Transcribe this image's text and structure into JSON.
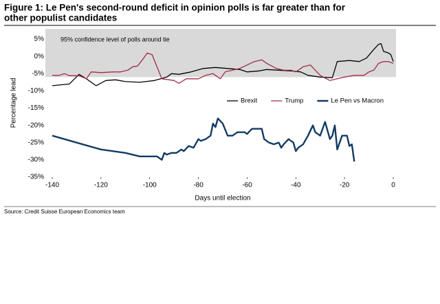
{
  "chart_data": {
    "type": "line",
    "title_lines": [
      "Figure 1: Le Pen's second-round deficit in opinion polls is far greater than for",
      "other populist candidates"
    ],
    "ylabel": "Percentage lead",
    "xlabel": "Days until election",
    "source": "Source: Credit Suisse European Economics team",
    "band": {
      "label": "95% confidence level of polls around tie",
      "range": [
        -6,
        8
      ],
      "color": "#d9d9d9"
    },
    "xlim": [
      -140,
      0
    ],
    "xticks": [
      -140,
      -120,
      -100,
      -80,
      -60,
      -40,
      -20,
      0
    ],
    "ylim": [
      -35,
      8
    ],
    "yticks": [
      {
        "value": 5,
        "label": "5%"
      },
      {
        "value": 0,
        "label": "0%"
      },
      {
        "value": -5,
        "label": "-5%"
      },
      {
        "value": -10,
        "label": "-10%"
      },
      {
        "value": -15,
        "label": "-15%"
      },
      {
        "value": -20,
        "label": "-20%"
      },
      {
        "value": -25,
        "label": "-25%"
      },
      {
        "value": -30,
        "label": "-30%"
      },
      {
        "value": -35,
        "label": "-35%"
      }
    ],
    "legend": "right",
    "series": [
      {
        "name": "Brexit",
        "color": "#000000",
        "width": 1.3,
        "x": [
          -140,
          -133,
          -129,
          -126,
          -122,
          -118,
          -114,
          -110,
          -104,
          -98,
          -93,
          -91,
          -88,
          -83,
          -78,
          -73,
          -68,
          -63,
          -60,
          -55,
          -52,
          -47,
          -42,
          -38,
          -35,
          -30,
          -25,
          -23,
          -18,
          -14,
          -11,
          -8,
          -6,
          -5,
          -4,
          -2,
          -1,
          0
        ],
        "values": [
          -8.5,
          -8,
          -5.2,
          -6.5,
          -8.5,
          -7,
          -6.8,
          -7.3,
          -7.5,
          -7,
          -6,
          -5,
          -5.2,
          -4.5,
          -3.5,
          -3.2,
          -3.5,
          -3.8,
          -4.5,
          -4.2,
          -3.8,
          -4,
          -4.2,
          -4.5,
          -5.5,
          -6,
          -6.2,
          -1.5,
          -1.2,
          -1.5,
          -0.5,
          2,
          3.5,
          3.7,
          1.5,
          1,
          0.5,
          -1.5
        ]
      },
      {
        "name": "Trump",
        "color": "#a32b45",
        "width": 1.3,
        "x": [
          -140,
          -137,
          -135,
          -133,
          -129,
          -126,
          -124,
          -120,
          -115,
          -112,
          -109,
          -107,
          -105,
          -103,
          -101,
          -99,
          -97,
          -95,
          -90,
          -88,
          -85,
          -80,
          -77,
          -74,
          -71,
          -69,
          -66,
          -63,
          -60,
          -57,
          -54,
          -52,
          -48,
          -45,
          -42,
          -40,
          -37,
          -34,
          -32,
          -30,
          -28,
          -26,
          -20,
          -16,
          -12,
          -10,
          -8,
          -6,
          -4,
          -2,
          0
        ],
        "values": [
          -5.5,
          -5.5,
          -5,
          -5.6,
          -5.6,
          -6.5,
          -4.5,
          -4.7,
          -4.5,
          -4.5,
          -4,
          -3,
          -2.8,
          -1,
          1,
          0.5,
          -3,
          -6.5,
          -7,
          -7.8,
          -6.5,
          -6.5,
          -5.5,
          -5,
          -6.5,
          -4.5,
          -4,
          -3.5,
          -2.5,
          -1.5,
          -1,
          -2,
          -3.5,
          -4,
          -4,
          -4.5,
          -3,
          -2.5,
          -4,
          -5.5,
          -6.3,
          -7,
          -6,
          -5.5,
          -5.5,
          -4.5,
          -4,
          -2,
          -1.5,
          -1.5,
          -2
        ]
      },
      {
        "name": "Le Pen vs Macron",
        "color": "#123a63",
        "width": 2.4,
        "x": [
          -140,
          -130,
          -120,
          -110,
          -104,
          -97,
          -95,
          -94,
          -93,
          -91,
          -89,
          -87,
          -86,
          -84,
          -82,
          -80,
          -79,
          -77,
          -75,
          -74,
          -73,
          -72,
          -70,
          -68,
          -66,
          -64,
          -61,
          -60,
          -58,
          -54,
          -53,
          -51,
          -49,
          -47,
          -46,
          -45,
          -43,
          -41,
          -40,
          -39,
          -37,
          -35,
          -33,
          -32,
          -30,
          -28,
          -26,
          -25,
          -24,
          -23,
          -21,
          -19,
          -18,
          -17,
          -16
        ],
        "values": [
          -23,
          -25,
          -27,
          -28,
          -29,
          -29,
          -30,
          -28,
          -28.5,
          -28,
          -28,
          -27,
          -27.5,
          -26,
          -26.5,
          -24,
          -24.5,
          -24,
          -23,
          -19.5,
          -20.5,
          -18,
          -19.5,
          -23,
          -23,
          -22,
          -22,
          -22.5,
          -21,
          -21,
          -24,
          -25,
          -25.5,
          -25,
          -26.5,
          -25.5,
          -24,
          -25,
          -27.5,
          -26.5,
          -25.5,
          -23,
          -20,
          -22,
          -23,
          -19,
          -24,
          -23,
          -20,
          -27,
          -23,
          -23,
          -26,
          -25.5,
          -30.5
        ]
      }
    ]
  }
}
